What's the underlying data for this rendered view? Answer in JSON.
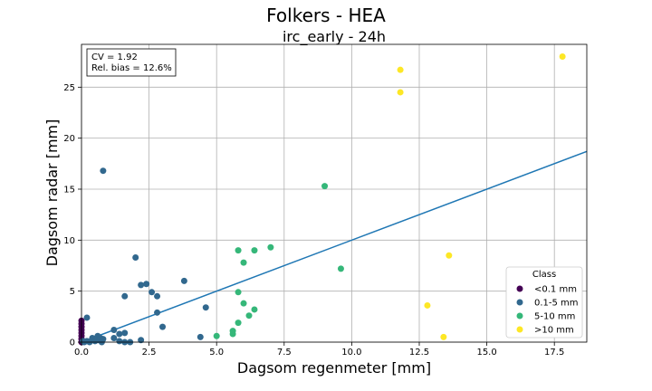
{
  "chart_data": {
    "type": "scatter",
    "suptitle": "Folkers - HEA",
    "title": "irc_early - 24h",
    "xlabel": "Dagsom regenmeter [mm]",
    "ylabel": "Dagsom radar [mm]",
    "xlim": [
      0,
      18.7
    ],
    "ylim": [
      0,
      29.2
    ],
    "xticks": [
      "0.0",
      "2.5",
      "5.0",
      "7.5",
      "10.0",
      "12.5",
      "15.0",
      "17.5"
    ],
    "xtick_values": [
      0,
      2.5,
      5,
      7.5,
      10,
      12.5,
      15,
      17.5
    ],
    "yticks": [
      "0",
      "5",
      "10",
      "15",
      "20",
      "25"
    ],
    "ytick_values": [
      0,
      5,
      10,
      15,
      20,
      25
    ],
    "grid": true,
    "stats": [
      "CV = 1.92",
      "Rel. bias = 12.6%"
    ],
    "legend": {
      "title": "Class",
      "placement": "lower-right"
    },
    "regression_line": {
      "color": "#1f77b4",
      "x": [
        0,
        18.7
      ],
      "y": [
        0.0,
        18.7
      ]
    },
    "series": [
      {
        "name": "<0.1 mm",
        "color": "#440154",
        "points": [
          [
            0,
            0.0
          ],
          [
            0,
            0.3
          ],
          [
            0,
            0.6
          ],
          [
            0,
            0.9
          ],
          [
            0,
            1.2
          ],
          [
            0,
            1.5
          ],
          [
            0,
            1.8
          ],
          [
            0,
            2.1
          ]
        ]
      },
      {
        "name": "0.1-5 mm",
        "color": "#31688e",
        "points": [
          [
            0.05,
            0.1
          ],
          [
            0.1,
            0.0
          ],
          [
            0.2,
            2.4
          ],
          [
            0.2,
            0.1
          ],
          [
            0.3,
            0.0
          ],
          [
            0.4,
            0.4
          ],
          [
            0.5,
            0.1
          ],
          [
            0.6,
            0.6
          ],
          [
            0.6,
            0.2
          ],
          [
            0.7,
            0.4
          ],
          [
            0.75,
            0.0
          ],
          [
            0.8,
            0.3
          ],
          [
            0.8,
            16.8
          ],
          [
            1.2,
            1.2
          ],
          [
            1.2,
            0.4
          ],
          [
            1.4,
            0.1
          ],
          [
            1.4,
            0.8
          ],
          [
            1.6,
            0.0
          ],
          [
            1.6,
            0.9
          ],
          [
            1.6,
            4.5
          ],
          [
            1.8,
            0.0
          ],
          [
            2.0,
            8.3
          ],
          [
            2.2,
            5.6
          ],
          [
            2.2,
            0.2
          ],
          [
            2.4,
            5.7
          ],
          [
            2.6,
            4.9
          ],
          [
            2.8,
            4.5
          ],
          [
            2.8,
            2.9
          ],
          [
            3.0,
            1.5
          ],
          [
            3.8,
            6.0
          ],
          [
            4.4,
            0.5
          ],
          [
            4.6,
            3.4
          ]
        ]
      },
      {
        "name": "5-10 mm",
        "color": "#35b779",
        "points": [
          [
            5.0,
            0.6
          ],
          [
            5.6,
            1.1
          ],
          [
            5.6,
            0.8
          ],
          [
            5.8,
            1.9
          ],
          [
            5.8,
            4.9
          ],
          [
            5.8,
            9.0
          ],
          [
            6.0,
            3.8
          ],
          [
            6.0,
            7.8
          ],
          [
            6.2,
            2.6
          ],
          [
            6.4,
            3.2
          ],
          [
            6.4,
            9.0
          ],
          [
            7.0,
            9.3
          ],
          [
            9.0,
            15.3
          ],
          [
            9.6,
            7.2
          ]
        ]
      },
      {
        "name": ">10 mm",
        "color": "#fde725",
        "points": [
          [
            11.8,
            26.7
          ],
          [
            11.8,
            24.5
          ],
          [
            12.8,
            3.6
          ],
          [
            13.4,
            0.5
          ],
          [
            13.6,
            8.5
          ],
          [
            17.8,
            28.0
          ]
        ]
      }
    ]
  }
}
